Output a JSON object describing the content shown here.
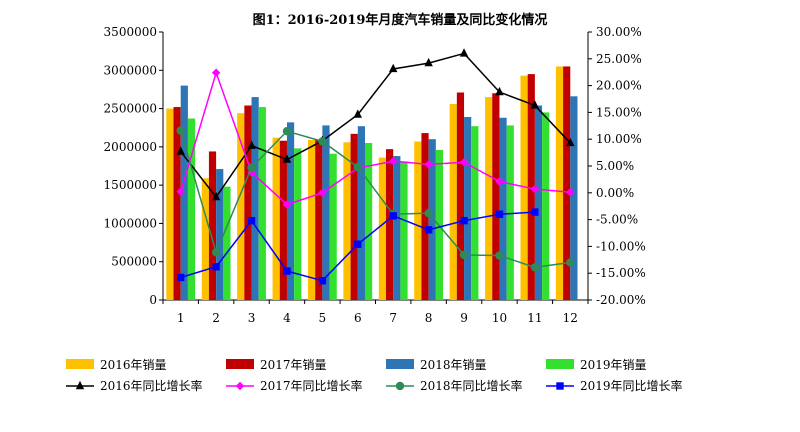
{
  "chart_data": {
    "type": "bar",
    "title": "图1：2016-2019年月度汽车销量及同比变化情况",
    "categories": [
      "1",
      "2",
      "3",
      "4",
      "5",
      "6",
      "7",
      "8",
      "9",
      "10",
      "11",
      "12"
    ],
    "y_left": {
      "min": 0,
      "max": 3500000,
      "ticks": [
        "0",
        "500000",
        "1000000",
        "1500000",
        "2000000",
        "2500000",
        "3000000",
        "3500000"
      ]
    },
    "y_right": {
      "min": -20,
      "max": 30,
      "ticks": [
        "-20.00%",
        "-15.00%",
        "-10.00%",
        "-5.00%",
        "0.00%",
        "5.00%",
        "10.00%",
        "15.00%",
        "20.00%",
        "25.00%",
        "30.00%"
      ]
    },
    "bar_series": [
      {
        "name": "2016年销量",
        "color": "#FFC000",
        "values": [
          2500000,
          1590000,
          2440000,
          2120000,
          2090000,
          2060000,
          1860000,
          2070000,
          2560000,
          2650000,
          2930000,
          3050000
        ]
      },
      {
        "name": "2017年销量",
        "color": "#C00000",
        "values": [
          2520000,
          1940000,
          2540000,
          2080000,
          2090000,
          2170000,
          1970000,
          2180000,
          2710000,
          2700000,
          2950000,
          3050000
        ]
      },
      {
        "name": "2018年销量",
        "color": "#2E75B6",
        "values": [
          2800000,
          1710000,
          2650000,
          2320000,
          2280000,
          2270000,
          1880000,
          2100000,
          2390000,
          2380000,
          2540000,
          2660000
        ]
      },
      {
        "name": "2019年销量",
        "color": "#33E02F",
        "values": [
          2370000,
          1480000,
          2520000,
          1980000,
          1910000,
          2050000,
          1810000,
          1960000,
          2270000,
          2280000,
          2450000,
          null
        ]
      }
    ],
    "line_series": [
      {
        "name": "2016年同比增长率",
        "color": "#000000",
        "marker": "triangle",
        "values": [
          7.7,
          -0.8,
          8.8,
          6.2,
          9.7,
          14.6,
          23.1,
          24.2,
          26.0,
          18.8,
          16.3,
          9.3
        ]
      },
      {
        "name": "2017年同比增长率",
        "color": "#FF00FF",
        "marker": "diamond",
        "values": [
          0.2,
          22.4,
          3.8,
          -2.2,
          0.0,
          4.6,
          5.9,
          5.3,
          5.7,
          2.1,
          0.7,
          0.1
        ]
      },
      {
        "name": "2018年同比增长率",
        "color": "#2E8B57",
        "marker": "circle",
        "values": [
          11.6,
          -11.1,
          4.7,
          11.5,
          9.6,
          4.8,
          -4.0,
          -3.8,
          -11.6,
          -11.7,
          -13.9,
          -13.0
        ]
      },
      {
        "name": "2019年同比增长率",
        "color": "#0000FF",
        "marker": "square",
        "values": [
          -15.8,
          -13.8,
          -5.2,
          -14.6,
          -16.4,
          -9.6,
          -4.3,
          -6.9,
          -5.2,
          -4.0,
          -3.6,
          null
        ]
      }
    ],
    "legend_position": "bottom",
    "grid": false
  }
}
